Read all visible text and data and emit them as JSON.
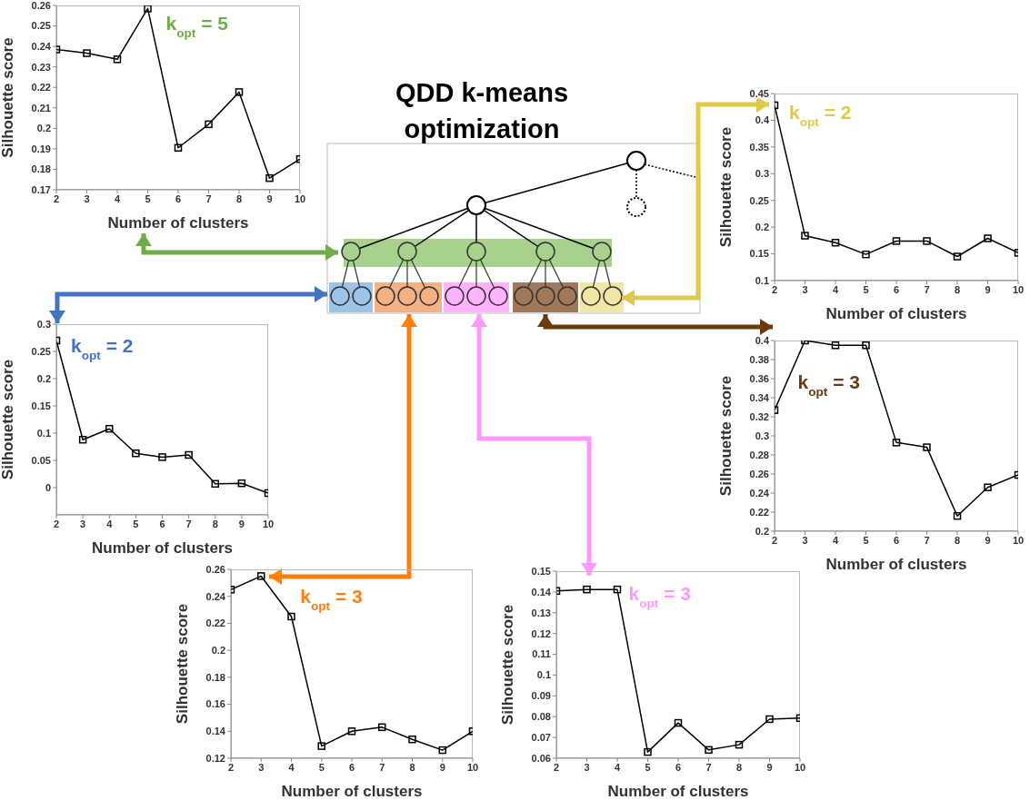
{
  "chart_data": [
    {
      "type": "line",
      "xlabel": "Number of clusters",
      "ylabel": "Silhouette score",
      "x": [
        2,
        3,
        4,
        5,
        6,
        7,
        8,
        9,
        10
      ],
      "values": [
        0.2385,
        0.2367,
        0.2337,
        0.2585,
        0.1905,
        0.202,
        0.2177,
        0.1757,
        0.185
      ],
      "color": "#000000",
      "marker": "square",
      "xlim": [
        2,
        10
      ],
      "xticks": [
        2,
        3,
        4,
        5,
        6,
        7,
        8,
        9,
        10
      ],
      "ylim": [
        0.17,
        0.26
      ],
      "yticks": [
        0.17,
        0.18,
        0.19,
        0.2,
        0.21,
        0.22,
        0.23,
        0.24,
        0.25,
        0.26
      ],
      "annotations": [
        {
          "text": "k$_{opt}$ = 5",
          "x": 5,
          "y": 0.2585
        }
      ]
    },
    {
      "type": "line",
      "xlabel": "Number of clusters",
      "ylabel": "Silhouette score",
      "x": [
        2,
        3,
        4,
        5,
        6,
        7,
        8,
        9,
        10
      ],
      "values": [
        0.428,
        0.184,
        0.171,
        0.149,
        0.174,
        0.174,
        0.145,
        0.179,
        0.152
      ],
      "color": "#000000",
      "marker": "square",
      "xlim": [
        2,
        10
      ],
      "xticks": [
        2,
        3,
        4,
        5,
        6,
        7,
        8,
        9,
        10
      ],
      "ylim": [
        0.1,
        0.45
      ],
      "yticks": [
        0.1,
        0.15,
        0.2,
        0.25,
        0.3,
        0.35,
        0.4,
        0.45
      ],
      "annotations": [
        {
          "text": "k$_{opt}$ = 2",
          "x": 2,
          "y": 0.428
        }
      ]
    },
    {
      "type": "line",
      "xlabel": "Number of clusters",
      "ylabel": "Silhouette score",
      "x": [
        2,
        3,
        4,
        5,
        6,
        7,
        8,
        9,
        10
      ],
      "values": [
        0.27,
        0.088,
        0.108,
        0.063,
        0.056,
        0.06,
        0.007,
        0.008,
        -0.01
      ],
      "color": "#000000",
      "marker": "square",
      "xlim": [
        2,
        10
      ],
      "xticks": [
        2,
        3,
        4,
        5,
        6,
        7,
        8,
        9,
        10
      ],
      "ylim": [
        -0.05,
        0.3
      ],
      "yticks": [
        0,
        0.05,
        0.1,
        0.15,
        0.2,
        0.25,
        0.3
      ],
      "annotations": [
        {
          "text": "k$_{opt}$ = 2",
          "x": 2,
          "y": 0.27
        }
      ]
    },
    {
      "type": "line",
      "xlabel": "Number of clusters",
      "ylabel": "Silhouette score",
      "x": [
        2,
        3,
        4,
        5,
        6,
        7,
        8,
        9,
        10
      ],
      "values": [
        0.327,
        0.4,
        0.395,
        0.395,
        0.293,
        0.288,
        0.216,
        0.246,
        0.259
      ],
      "color": "#000000",
      "marker": "square",
      "xlim": [
        2,
        10
      ],
      "xticks": [
        2,
        3,
        4,
        5,
        6,
        7,
        8,
        9,
        10
      ],
      "ylim": [
        0.2,
        0.4
      ],
      "yticks": [
        0.2,
        0.22,
        0.24,
        0.26,
        0.28,
        0.3,
        0.32,
        0.34,
        0.36,
        0.38,
        0.4
      ],
      "annotations": [
        {
          "text": "k$_{opt}$ = 3",
          "x": 3,
          "y": 0.4
        }
      ]
    },
    {
      "type": "line",
      "xlabel": "Number of clusters",
      "ylabel": "Silhouette score",
      "x": [
        2,
        3,
        4,
        5,
        6,
        7,
        8,
        9,
        10
      ],
      "values": [
        0.245,
        0.255,
        0.225,
        0.129,
        0.14,
        0.143,
        0.134,
        0.126,
        0.14
      ],
      "color": "#000000",
      "marker": "square",
      "xlim": [
        2,
        10
      ],
      "xticks": [
        2,
        3,
        4,
        5,
        6,
        7,
        8,
        9,
        10
      ],
      "ylim": [
        0.12,
        0.26
      ],
      "yticks": [
        0.12,
        0.14,
        0.16,
        0.18,
        0.2,
        0.22,
        0.24,
        0.26
      ],
      "annotations": [
        {
          "text": "k$_{opt}$ = 3",
          "x": 3,
          "y": 0.255
        }
      ]
    },
    {
      "type": "line",
      "xlabel": "Number of clusters",
      "ylabel": "Silhouette score",
      "x": [
        2,
        3,
        4,
        5,
        6,
        7,
        8,
        9,
        10
      ],
      "values": [
        0.1405,
        0.1412,
        0.1412,
        0.063,
        0.077,
        0.064,
        0.0665,
        0.0788,
        0.0793
      ],
      "color": "#000000",
      "marker": "square",
      "xlim": [
        2,
        10
      ],
      "xticks": [
        2,
        3,
        4,
        5,
        6,
        7,
        8,
        9,
        10
      ],
      "ylim": [
        0.06,
        0.15
      ],
      "yticks": [
        0.06,
        0.07,
        0.08,
        0.09,
        0.1,
        0.11,
        0.12,
        0.13,
        0.14,
        0.15
      ],
      "annotations": [
        {
          "text": "k$_{opt}$ = 3",
          "x": 3,
          "y": 0.1412
        }
      ]
    },
    {
      "type": "other",
      "title": "QDD k-means optimization"
    }
  ]
}
